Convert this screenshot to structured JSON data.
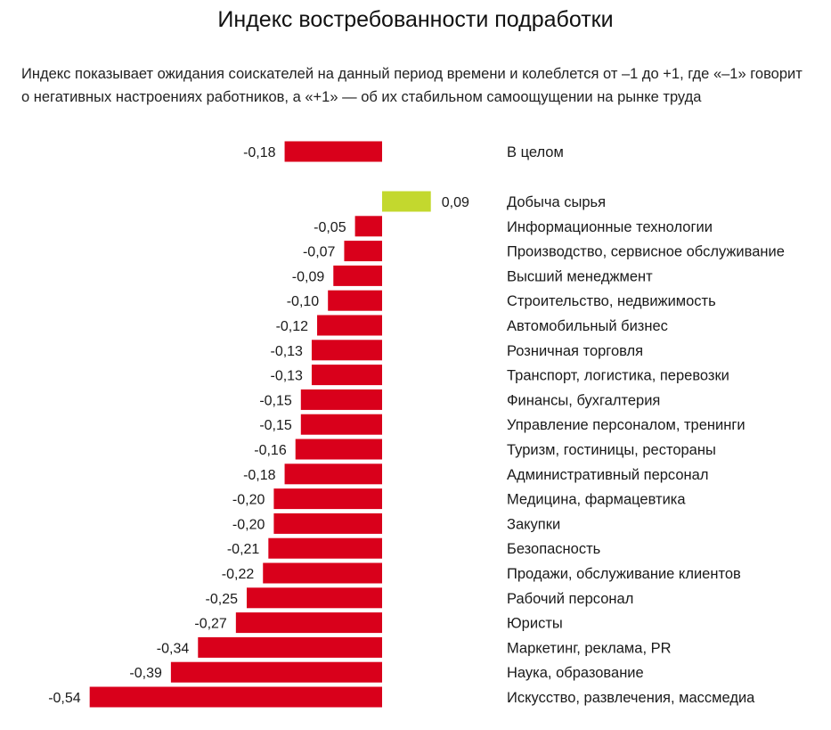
{
  "header": {
    "title": "Индекс востребованности подработки",
    "subtitle": "Индекс показывает ожидания соискателей на данный период времени и колеблется  от –1 до +1, где «–1» говорит о негативных настроениях работников, а «+1» — об их стабильном самоощущении на рынке труда"
  },
  "colors": {
    "negative": "#d9001b",
    "positive": "#c3d82e"
  },
  "chart_data": {
    "type": "bar",
    "orientation": "horizontal",
    "title": "Индекс востребованности подработки",
    "grid": false,
    "legend": "none",
    "xlim": [
      -0.54,
      0.09
    ],
    "categories": [
      "В целом",
      "Добыча сырья",
      "Информационные технологии",
      "Производство, сервисное обслуживание",
      "Высший менеджмент",
      "Строительство, недвижимость",
      "Автомобильный бизнес",
      "Розничная торговля",
      "Транспорт, логистика, перевозки",
      "Финансы, бухгалтерия",
      "Управление персоналом, тренинги",
      "Туризм, гостиницы, рестораны",
      "Административный персонал",
      "Медицина, фармацевтика",
      "Закупки",
      "Безопасность",
      "Продажи, обслуживание клиентов",
      "Рабочий персонал",
      "Юристы",
      "Маркетинг, реклама, PR",
      "Наука, образование",
      "Искусство, развлечения, массмедиа"
    ],
    "values": [
      -0.18,
      0.09,
      -0.05,
      -0.07,
      -0.09,
      -0.1,
      -0.12,
      -0.13,
      -0.13,
      -0.15,
      -0.15,
      -0.16,
      -0.18,
      -0.2,
      -0.2,
      -0.21,
      -0.22,
      -0.25,
      -0.27,
      -0.34,
      -0.39,
      -0.54
    ],
    "value_labels": [
      "-0,18",
      "0,09",
      "-0,05",
      "-0,07",
      "-0,09",
      "-0,10",
      "-0,12",
      "-0,13",
      "-0,13",
      "-0,15",
      "-0,15",
      "-0,16",
      "-0,18",
      "-0,20",
      "-0,20",
      "-0,21",
      "-0,22",
      "-0,25",
      "-0,27",
      "-0,34",
      "-0,39",
      "-0,54"
    ]
  }
}
